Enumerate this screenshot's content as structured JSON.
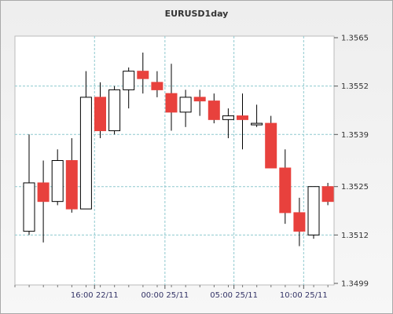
{
  "chart_data": {
    "type": "candlestick",
    "title": "EURUSD1day",
    "xlabel": "",
    "ylabel": "",
    "ylim": [
      1.3499,
      1.3565
    ],
    "y_ticks": [
      "1.3565",
      "1.3552",
      "1.3539",
      "1.3525",
      "1.3512",
      "1.3499"
    ],
    "x_ticks": [
      {
        "label": "16:00 22/11",
        "index": 4.6
      },
      {
        "label": "00:00 25/11",
        "index": 9.55
      },
      {
        "label": "05:00 25/11",
        "index": 14.4
      },
      {
        "label": "10:00 25/11",
        "index": 19.3
      }
    ],
    "grid": true,
    "colors": {
      "up": "#ffffff",
      "down": "#e8413d",
      "border": "#000000",
      "grid": "#8fc9cf"
    },
    "candles": [
      {
        "open": 1.3513,
        "high": 1.3539,
        "low": 1.3512,
        "close": 1.3526
      },
      {
        "open": 1.3526,
        "high": 1.3532,
        "low": 1.351,
        "close": 1.3521
      },
      {
        "open": 1.3521,
        "high": 1.3535,
        "low": 1.352,
        "close": 1.3532
      },
      {
        "open": 1.3532,
        "high": 1.3538,
        "low": 1.3518,
        "close": 1.3519
      },
      {
        "open": 1.3519,
        "high": 1.3556,
        "low": 1.3519,
        "close": 1.3549
      },
      {
        "open": 1.3549,
        "high": 1.3553,
        "low": 1.3538,
        "close": 1.354
      },
      {
        "open": 1.354,
        "high": 1.3552,
        "low": 1.3539,
        "close": 1.3551
      },
      {
        "open": 1.3551,
        "high": 1.3557,
        "low": 1.3546,
        "close": 1.3556
      },
      {
        "open": 1.3556,
        "high": 1.3561,
        "low": 1.355,
        "close": 1.3554
      },
      {
        "open": 1.3553,
        "high": 1.3556,
        "low": 1.3549,
        "close": 1.3551
      },
      {
        "open": 1.355,
        "high": 1.3558,
        "low": 1.354,
        "close": 1.3545
      },
      {
        "open": 1.3545,
        "high": 1.3551,
        "low": 1.3541,
        "close": 1.3549
      },
      {
        "open": 1.3549,
        "high": 1.3551,
        "low": 1.3544,
        "close": 1.3548
      },
      {
        "open": 1.3548,
        "high": 1.355,
        "low": 1.3542,
        "close": 1.3543
      },
      {
        "open": 1.3543,
        "high": 1.3546,
        "low": 1.3538,
        "close": 1.3544
      },
      {
        "open": 1.3544,
        "high": 1.355,
        "low": 1.3535,
        "close": 1.3543
      },
      {
        "open": 1.3542,
        "high": 1.3547,
        "low": 1.3541,
        "close": 1.3542
      },
      {
        "open": 1.3542,
        "high": 1.3544,
        "low": 1.353,
        "close": 1.353
      },
      {
        "open": 1.353,
        "high": 1.3535,
        "low": 1.3515,
        "close": 1.3518
      },
      {
        "open": 1.3518,
        "high": 1.3522,
        "low": 1.3509,
        "close": 1.3513
      },
      {
        "open": 1.3512,
        "high": 1.3525,
        "low": 1.3511,
        "close": 1.3525
      },
      {
        "open": 1.3525,
        "high": 1.3526,
        "low": 1.352,
        "close": 1.3521
      }
    ]
  }
}
